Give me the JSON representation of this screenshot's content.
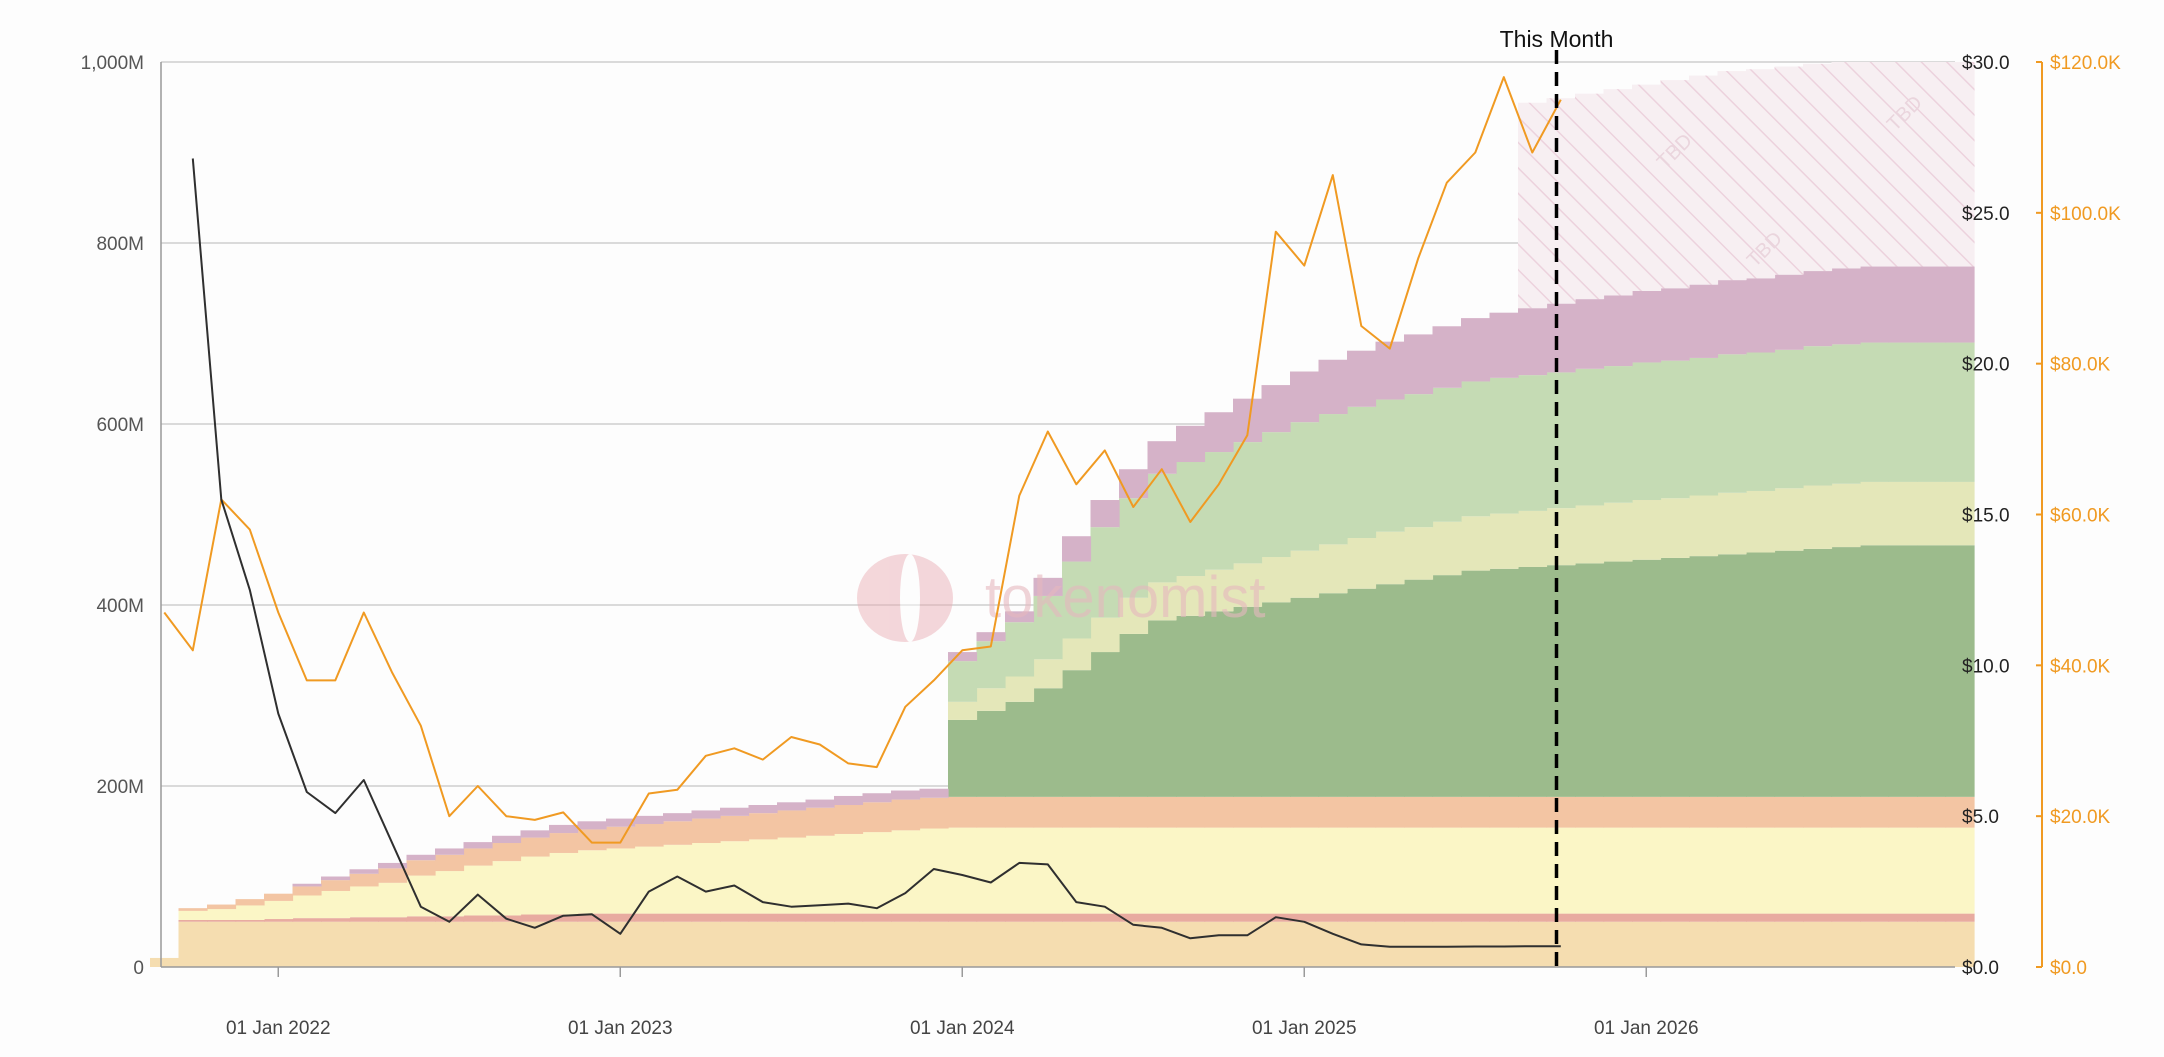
{
  "chart_data": {
    "type": "area",
    "x_ticks": [
      "01 Jan 2022",
      "01 Jan 2023",
      "01 Jan 2024",
      "01 Jan 2025",
      "01 Jan 2026"
    ],
    "x_range": [
      "2021-08-01",
      "2026-12-01"
    ],
    "y_left": {
      "ylim": [
        0,
        1000
      ],
      "ticks": [
        "0",
        "200M",
        "400M",
        "600M",
        "800M",
        "1,000M"
      ]
    },
    "y_right_price": {
      "ylim": [
        0,
        30
      ],
      "ticks": [
        "$0.0",
        "$5.0",
        "$10.0",
        "$15.0",
        "$20.0",
        "$25.0",
        "$30.0"
      ]
    },
    "y_right_btc": {
      "ylim": [
        0,
        120
      ],
      "ticks": [
        "$0.0",
        "$20.0K",
        "$40.0K",
        "$60.0K",
        "$80.0K",
        "$100.0K",
        "$120.0K"
      ],
      "color": "#f09a22"
    },
    "marker": {
      "label": "This Month",
      "date": "2025-09"
    },
    "watermark": "tokenomist",
    "tbd_label": "TBD",
    "grid": true,
    "supply_months": [
      "2021-08",
      "2021-09",
      "2021-10",
      "2021-11",
      "2021-12",
      "2022-01",
      "2022-02",
      "2022-03",
      "2022-04",
      "2022-05",
      "2022-06",
      "2022-07",
      "2022-08",
      "2022-09",
      "2022-10",
      "2022-11",
      "2022-12",
      "2023-01",
      "2023-02",
      "2023-03",
      "2023-04",
      "2023-05",
      "2023-06",
      "2023-07",
      "2023-08",
      "2023-09",
      "2023-10",
      "2023-11",
      "2023-12",
      "2024-01",
      "2024-02",
      "2024-03",
      "2024-04",
      "2024-05",
      "2024-06",
      "2024-07",
      "2024-08",
      "2024-09",
      "2024-10",
      "2024-11",
      "2024-12",
      "2025-01",
      "2025-02",
      "2025-03",
      "2025-04",
      "2025-05",
      "2025-06",
      "2025-07",
      "2025-08",
      "2025-09",
      "2025-10",
      "2025-11",
      "2025-12",
      "2026-01",
      "2026-02",
      "2026-03",
      "2026-04",
      "2026-05",
      "2026-06",
      "2026-07",
      "2026-08",
      "2026-09",
      "2026-10",
      "2026-11"
    ],
    "series": [
      {
        "key": "s1",
        "color": "#f5ddb0",
        "values": [
          10,
          50,
          50,
          50,
          50,
          50,
          50,
          50,
          50,
          50,
          50,
          50,
          50,
          50,
          50,
          50,
          50,
          50,
          50,
          50,
          50,
          50,
          50,
          50,
          50,
          50,
          50,
          50,
          50,
          50,
          50,
          50,
          50,
          50,
          50,
          50,
          50,
          50,
          50,
          50,
          50,
          50,
          50,
          50,
          50,
          50,
          50,
          50,
          50,
          50,
          50,
          50,
          50,
          50,
          50,
          50,
          50,
          50,
          50,
          50,
          50,
          50,
          50,
          50
        ]
      },
      {
        "key": "s2",
        "color": "#e8aba0",
        "values": [
          0,
          2,
          2,
          2,
          3,
          4,
          4,
          5,
          5,
          6,
          6,
          7,
          7,
          8,
          8,
          9,
          9,
          9,
          9,
          9,
          9,
          9,
          9,
          9,
          9,
          9,
          9,
          9,
          9,
          9,
          9,
          9,
          9,
          9,
          9,
          9,
          9,
          9,
          9,
          9,
          9,
          9,
          9,
          9,
          9,
          9,
          9,
          9,
          9,
          9,
          9,
          9,
          9,
          9,
          9,
          9,
          9,
          9,
          9,
          9,
          9,
          9,
          9,
          9
        ]
      },
      {
        "key": "s3",
        "color": "#fbf6c6",
        "values": [
          0,
          10,
          12,
          16,
          20,
          25,
          30,
          34,
          38,
          45,
          50,
          55,
          60,
          64,
          68,
          70,
          72,
          74,
          76,
          78,
          80,
          82,
          84,
          86,
          88,
          90,
          92,
          94,
          95,
          95,
          95,
          95,
          95,
          95,
          95,
          95,
          95,
          95,
          95,
          95,
          95,
          95,
          95,
          95,
          95,
          95,
          95,
          95,
          95,
          95,
          95,
          95,
          95,
          95,
          95,
          95,
          95,
          95,
          95,
          95,
          95,
          95,
          95,
          95
        ]
      },
      {
        "key": "s4",
        "color": "#f3c5a3",
        "values": [
          0,
          3,
          5,
          7,
          8,
          10,
          12,
          14,
          16,
          17,
          18,
          19,
          20,
          21,
          22,
          23,
          24,
          25,
          26,
          27,
          28,
          29,
          30,
          31,
          32,
          33,
          34,
          34,
          34,
          34,
          34,
          34,
          34,
          34,
          34,
          34,
          34,
          34,
          34,
          34,
          34,
          34,
          34,
          34,
          34,
          34,
          34,
          34,
          34,
          34,
          34,
          34,
          34,
          34,
          34,
          34,
          34,
          34,
          34,
          34,
          34,
          34,
          34,
          34
        ]
      },
      {
        "key": "s5",
        "color": "#9cbb8c",
        "values": [
          0,
          0,
          0,
          0,
          0,
          0,
          0,
          0,
          0,
          0,
          0,
          0,
          0,
          0,
          0,
          0,
          0,
          0,
          0,
          0,
          0,
          0,
          0,
          0,
          0,
          0,
          0,
          0,
          85,
          95,
          105,
          120,
          140,
          160,
          180,
          195,
          200,
          205,
          210,
          215,
          220,
          225,
          230,
          235,
          240,
          245,
          250,
          252,
          254,
          256,
          258,
          260,
          262,
          264,
          266,
          268,
          270,
          272,
          274,
          276,
          278,
          278,
          278,
          278
        ]
      },
      {
        "key": "s6",
        "color": "#e4e7b9",
        "values": [
          0,
          0,
          0,
          0,
          0,
          0,
          0,
          0,
          0,
          0,
          0,
          0,
          0,
          0,
          0,
          0,
          0,
          0,
          0,
          0,
          0,
          0,
          0,
          0,
          0,
          0,
          0,
          0,
          20,
          25,
          28,
          32,
          35,
          38,
          40,
          42,
          44,
          46,
          48,
          50,
          52,
          54,
          56,
          58,
          58,
          59,
          60,
          61,
          62,
          63,
          64,
          65,
          66,
          66,
          67,
          68,
          68,
          69,
          70,
          70,
          70,
          70,
          70,
          70
        ]
      },
      {
        "key": "s7",
        "color": "#c5dbb4",
        "values": [
          0,
          0,
          0,
          0,
          0,
          0,
          0,
          0,
          0,
          0,
          0,
          0,
          0,
          0,
          0,
          0,
          0,
          0,
          0,
          0,
          0,
          0,
          0,
          0,
          0,
          0,
          0,
          0,
          45,
          52,
          60,
          70,
          85,
          100,
          110,
          120,
          126,
          130,
          134,
          138,
          142,
          144,
          145,
          146,
          147,
          148,
          149,
          150,
          150,
          150,
          151,
          151,
          152,
          152,
          152,
          153,
          153,
          153,
          154,
          154,
          154,
          154,
          154,
          154
        ]
      },
      {
        "key": "s8",
        "color": "#d5b2c8",
        "values": [
          0,
          0,
          0,
          0,
          0,
          3,
          4,
          5,
          6,
          6,
          7,
          7,
          8,
          8,
          9,
          9,
          9,
          9,
          9,
          9,
          9,
          9,
          9,
          9,
          10,
          10,
          10,
          10,
          10,
          10,
          12,
          20,
          28,
          30,
          32,
          36,
          40,
          44,
          48,
          52,
          56,
          60,
          62,
          64,
          66,
          68,
          70,
          72,
          74,
          76,
          77,
          78,
          79,
          80,
          81,
          82,
          82,
          83,
          83,
          84,
          84,
          84,
          84,
          84
        ]
      }
    ],
    "tbd_top": [
      955,
      960,
      965,
      970,
      975,
      980,
      985,
      990,
      992,
      995,
      998,
      1000,
      1000,
      1000,
      1000,
      1000
    ],
    "price": {
      "color": "#2f2f2f",
      "months": [
        "2021-09",
        "2021-10",
        "2021-11",
        "2021-12",
        "2022-01",
        "2022-02",
        "2022-03",
        "2022-04",
        "2022-05",
        "2022-06",
        "2022-07",
        "2022-08",
        "2022-09",
        "2022-10",
        "2022-11",
        "2022-12",
        "2023-01",
        "2023-02",
        "2023-03",
        "2023-04",
        "2023-05",
        "2023-06",
        "2023-07",
        "2023-08",
        "2023-09",
        "2023-10",
        "2023-11",
        "2023-12",
        "2024-01",
        "2024-02",
        "2024-03",
        "2024-04",
        "2024-05",
        "2024-06",
        "2024-07",
        "2024-08",
        "2024-09",
        "2024-10",
        "2024-11",
        "2024-12",
        "2025-01",
        "2025-02",
        "2025-03",
        "2025-04",
        "2025-05",
        "2025-06",
        "2025-07",
        "2025-08",
        "2025-09"
      ],
      "values": [
        26.8,
        15.5,
        12.5,
        8.4,
        5.8,
        5.1,
        6.2,
        4.1,
        2.0,
        1.5,
        2.4,
        1.6,
        1.3,
        1.7,
        1.75,
        1.1,
        2.5,
        3.0,
        2.5,
        2.7,
        2.15,
        2.0,
        2.05,
        2.1,
        1.95,
        2.45,
        3.25,
        3.05,
        2.8,
        3.45,
        3.4,
        2.15,
        2.0,
        1.4,
        1.3,
        0.95,
        1.05,
        1.05,
        1.65,
        1.5,
        1.1,
        0.75,
        0.67,
        0.67,
        0.67,
        0.68,
        0.68,
        0.69,
        0.69
      ]
    },
    "btc": {
      "color": "#f09a22",
      "months": [
        "2021-08",
        "2021-09",
        "2021-10",
        "2021-11",
        "2021-12",
        "2022-01",
        "2022-02",
        "2022-03",
        "2022-04",
        "2022-05",
        "2022-06",
        "2022-07",
        "2022-08",
        "2022-09",
        "2022-10",
        "2022-11",
        "2022-12",
        "2023-01",
        "2023-02",
        "2023-03",
        "2023-04",
        "2023-05",
        "2023-06",
        "2023-07",
        "2023-08",
        "2023-09",
        "2023-10",
        "2023-11",
        "2023-12",
        "2024-01",
        "2024-02",
        "2024-03",
        "2024-04",
        "2024-05",
        "2024-06",
        "2024-07",
        "2024-08",
        "2024-09",
        "2024-10",
        "2024-11",
        "2024-12",
        "2025-01",
        "2025-02",
        "2025-03",
        "2025-04",
        "2025-05",
        "2025-06",
        "2025-07",
        "2025-08",
        "2025-09"
      ],
      "values": [
        47,
        42,
        62,
        58,
        47,
        38,
        38,
        47,
        39,
        32,
        20,
        24,
        20,
        19.5,
        20.5,
        16.5,
        16.5,
        23,
        23.5,
        28,
        29,
        27.5,
        30.5,
        29.5,
        27,
        26.5,
        34.5,
        38,
        42,
        42.5,
        62.5,
        71,
        64,
        68.5,
        61,
        66,
        59,
        64,
        70.5,
        97.5,
        93,
        105,
        85,
        82,
        94,
        104,
        108,
        118,
        108,
        115
      ]
    }
  }
}
